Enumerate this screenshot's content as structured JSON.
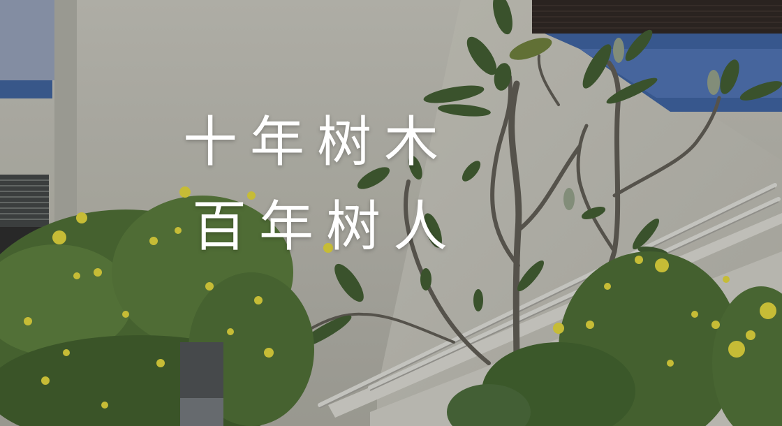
{
  "overlay": {
    "line1": "十年树木",
    "line2": "百年树人"
  },
  "scene": {
    "description_colors": {
      "wall": "#b7b6ad",
      "trim": "#3b5d93",
      "window": "#333333",
      "brick": "#2d2622",
      "leaf": "#4f6a3e",
      "flower": "#d6c93a",
      "rail": "#c7c7c2"
    }
  }
}
